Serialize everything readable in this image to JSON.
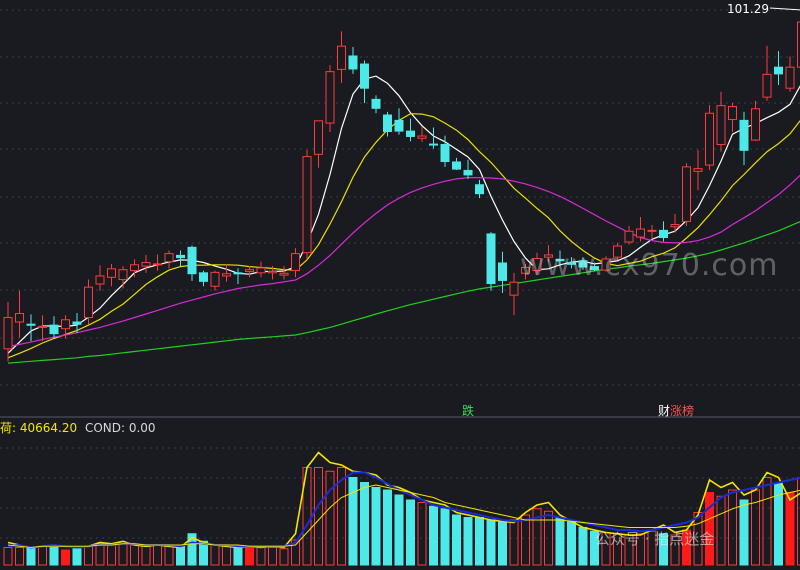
{
  "price_label": "101.29",
  "watermark": "www.cx970.com",
  "social_label": "公众号 · 指点迷金",
  "sub_header": {
    "value_text": "荷: 40664.20",
    "cond_text": "COND: 0.00"
  },
  "markers": {
    "down": "跌",
    "news_prefix": "财",
    "news_up": "涨榜"
  },
  "colors": {
    "background": "#1a1b20",
    "up": "#ff3b3b",
    "down": "#4de8e8",
    "ma5": "#ffffff",
    "ma10": "#e8e000",
    "ma20": "#d82ad8",
    "ma60": "#1fd11f",
    "vol_line": "#f2e600",
    "vol_ma": "#1a2bd8",
    "vol_red_fill": "#ff1a1a",
    "grid": "#3a3d4a"
  },
  "chart_data": [
    {
      "type": "candlestick",
      "title": "",
      "ylim": [
        23,
        101.29
      ],
      "grid": true,
      "candles": [
        {
          "o": 25.5,
          "h": 36,
          "l": 22.7,
          "c": 32.5
        },
        {
          "o": 31.5,
          "h": 38.5,
          "l": 28,
          "c": 33.4
        },
        {
          "o": 31.0,
          "h": 33.2,
          "l": 27.2,
          "c": 30.8
        },
        {
          "o": 30.5,
          "h": 33,
          "l": 27.2,
          "c": 30.5
        },
        {
          "o": 30.8,
          "h": 32.8,
          "l": 27.8,
          "c": 28.9
        },
        {
          "o": 30,
          "h": 33,
          "l": 27.8,
          "c": 32
        },
        {
          "o": 31.5,
          "h": 33.5,
          "l": 29,
          "c": 31
        },
        {
          "o": 32.5,
          "h": 41,
          "l": 31,
          "c": 39.3
        },
        {
          "o": 40,
          "h": 44.2,
          "l": 38.5,
          "c": 41.8
        },
        {
          "o": 41.5,
          "h": 44.5,
          "l": 39.5,
          "c": 43.4
        },
        {
          "o": 41,
          "h": 44,
          "l": 39,
          "c": 43.2
        },
        {
          "o": 43,
          "h": 45.5,
          "l": 41.5,
          "c": 44.3
        },
        {
          "o": 44,
          "h": 46.5,
          "l": 42.5,
          "c": 44.8
        },
        {
          "o": 44.5,
          "h": 46.6,
          "l": 43,
          "c": 44.5
        },
        {
          "o": 45,
          "h": 47.5,
          "l": 43.5,
          "c": 46.8
        },
        {
          "o": 46.4,
          "h": 47.5,
          "l": 44,
          "c": 45.9
        },
        {
          "o": 48.2,
          "h": 48.6,
          "l": 40.7,
          "c": 42.3
        },
        {
          "o": 42.5,
          "h": 43,
          "l": 39.5,
          "c": 40.6
        },
        {
          "o": 39.5,
          "h": 43,
          "l": 38.5,
          "c": 42.6
        },
        {
          "o": 41.8,
          "h": 44.5,
          "l": 40.5,
          "c": 42.3
        },
        {
          "o": 42.5,
          "h": 43.5,
          "l": 40,
          "c": 42.3
        },
        {
          "o": 42.8,
          "h": 44,
          "l": 41.5,
          "c": 43.2
        },
        {
          "o": 42.5,
          "h": 45,
          "l": 41.5,
          "c": 43.6
        },
        {
          "o": 42.5,
          "h": 44,
          "l": 41,
          "c": 42.8
        },
        {
          "o": 42,
          "h": 44,
          "l": 41,
          "c": 42.4
        },
        {
          "o": 43,
          "h": 48,
          "l": 41.5,
          "c": 46.8
        },
        {
          "o": 47,
          "h": 70,
          "l": 45.5,
          "c": 68.5
        },
        {
          "o": 69,
          "h": 76.5,
          "l": 66,
          "c": 76.5
        },
        {
          "o": 76,
          "h": 89,
          "l": 74,
          "c": 87.5
        },
        {
          "o": 88,
          "h": 96.5,
          "l": 85,
          "c": 93.2
        },
        {
          "o": 91,
          "h": 93,
          "l": 87,
          "c": 88.1
        },
        {
          "o": 89.2,
          "h": 90,
          "l": 80.5,
          "c": 83.8
        },
        {
          "o": 81.3,
          "h": 82.2,
          "l": 78.2,
          "c": 79.3
        },
        {
          "o": 77.8,
          "h": 78.5,
          "l": 73,
          "c": 74.1
        },
        {
          "o": 76.6,
          "h": 79.3,
          "l": 73.4,
          "c": 74.2
        },
        {
          "o": 74.2,
          "h": 77,
          "l": 71.9,
          "c": 73
        },
        {
          "o": 72.6,
          "h": 75.2,
          "l": 71.8,
          "c": 73.1
        },
        {
          "o": 71.3,
          "h": 75,
          "l": 70.3,
          "c": 71.1
        },
        {
          "o": 71.2,
          "h": 73.2,
          "l": 66.2,
          "c": 67.4
        },
        {
          "o": 67.3,
          "h": 68.2,
          "l": 65.5,
          "c": 65.7
        },
        {
          "o": 65.4,
          "h": 67.8,
          "l": 63.5,
          "c": 64.4
        },
        {
          "o": 62.2,
          "h": 63.3,
          "l": 59.2,
          "c": 60.2
        },
        {
          "o": 51.2,
          "h": 51.6,
          "l": 38.5,
          "c": 40.1
        },
        {
          "o": 44.7,
          "h": 47.2,
          "l": 38,
          "c": 40.8
        },
        {
          "o": 37.5,
          "h": 42.5,
          "l": 33,
          "c": 40.4
        },
        {
          "o": 42.4,
          "h": 44.5,
          "l": 41,
          "c": 43.7
        },
        {
          "o": 43,
          "h": 47,
          "l": 42,
          "c": 45.7
        },
        {
          "o": 46,
          "h": 48.7,
          "l": 44.9,
          "c": 46.5
        },
        {
          "o": 45.5,
          "h": 47.5,
          "l": 44,
          "c": 45.2
        },
        {
          "o": 44.8,
          "h": 46,
          "l": 43.5,
          "c": 44.4
        },
        {
          "o": 45.2,
          "h": 46,
          "l": 43.2,
          "c": 43.8
        },
        {
          "o": 43.9,
          "h": 44.8,
          "l": 42.9,
          "c": 43.2
        },
        {
          "o": 43.1,
          "h": 46.2,
          "l": 42.8,
          "c": 45.6
        },
        {
          "o": 46,
          "h": 49.2,
          "l": 45.5,
          "c": 48.5
        },
        {
          "o": 49.4,
          "h": 53,
          "l": 48.8,
          "c": 51.8
        },
        {
          "o": 50.5,
          "h": 55,
          "l": 49.5,
          "c": 52.3
        },
        {
          "o": 51.8,
          "h": 53.2,
          "l": 50,
          "c": 52
        },
        {
          "o": 52,
          "h": 54,
          "l": 49.5,
          "c": 50.4
        },
        {
          "o": 52.8,
          "h": 55.7,
          "l": 51.5,
          "c": 53.3
        },
        {
          "o": 54,
          "h": 67,
          "l": 53,
          "c": 66.2
        },
        {
          "o": 65.2,
          "h": 70,
          "l": 61,
          "c": 65.8
        },
        {
          "o": 66.6,
          "h": 80,
          "l": 65.5,
          "c": 78.2
        },
        {
          "o": 71.2,
          "h": 83,
          "l": 69.6,
          "c": 79.9
        },
        {
          "o": 76.8,
          "h": 80.5,
          "l": 74,
          "c": 79.7
        },
        {
          "o": 76.6,
          "h": 78.5,
          "l": 66.6,
          "c": 69.9
        },
        {
          "o": 72.2,
          "h": 81,
          "l": 72,
          "c": 79.2
        },
        {
          "o": 81.8,
          "h": 93.3,
          "l": 81,
          "c": 86.9
        },
        {
          "o": 88.5,
          "h": 92.1,
          "l": 84.5,
          "c": 87
        },
        {
          "o": 83.8,
          "h": 90.9,
          "l": 83,
          "c": 88.5
        },
        {
          "o": 88.5,
          "h": 101.29,
          "l": 84.5,
          "c": 98.6
        }
      ],
      "moving_averages": [
        {
          "period": 5,
          "values": [
            24.5,
            27,
            29.5,
            30.6,
            30.6,
            30.5,
            30.8,
            32.6,
            34.6,
            37.4,
            39.9,
            42.5,
            43.6,
            44.3,
            44.9,
            45.4,
            45.3,
            44.8,
            44,
            43.3,
            42.4,
            42.2,
            42.8,
            42.8,
            42.9,
            43.8,
            49.1,
            55.6,
            64.5,
            74.8,
            82.5,
            85.8,
            86.5,
            84.9,
            82.1,
            78.3,
            75.4,
            73.1,
            71.8,
            70.1,
            68.4,
            65.6,
            59.6,
            54.3,
            49.5,
            45.8,
            43.2,
            43.4,
            44.3,
            44.9,
            45.1,
            44.5,
            44.8,
            45.2,
            46.3,
            48.2,
            50,
            51,
            51.8,
            54.2,
            57.1,
            62,
            67.5,
            73.5,
            74.8,
            75.9,
            77.2,
            78.4,
            80.2,
            84.8
          ]
        },
        {
          "period": 10,
          "values": [
            23.5,
            24.5,
            25.6,
            26.8,
            27.8,
            28.7,
            29.6,
            30.8,
            32.1,
            33.9,
            35.5,
            37.7,
            39.9,
            41.6,
            43.1,
            43.9,
            44.2,
            44.2,
            44.3,
            44.3,
            44.2,
            43.9,
            43.7,
            43.5,
            43.2,
            43.1,
            45.4,
            48.8,
            53.4,
            58.4,
            63.9,
            68.4,
            71.7,
            74.5,
            76.6,
            78.1,
            78,
            77.4,
            76,
            74.4,
            72.3,
            69.6,
            67.2,
            64.3,
            61.4,
            59.2,
            56.9,
            54.8,
            51.9,
            49.5,
            47.5,
            45.8,
            44.6,
            44.1,
            44.6,
            45.1,
            46.1,
            46.9,
            48.1,
            50.3,
            52.6,
            55.5,
            58.6,
            62,
            64.5,
            67.1,
            69.6,
            71.4,
            73.6,
            76.9
          ]
        },
        {
          "period": 20,
          "values": [
            26,
            26.5,
            27,
            27.6,
            28.1,
            28.6,
            29.1,
            29.7,
            30.3,
            31,
            31.7,
            32.5,
            33.3,
            34.1,
            34.9,
            35.7,
            36.4,
            37.1,
            37.8,
            38.4,
            39,
            39.4,
            39.8,
            40.1,
            40.5,
            40.9,
            42.3,
            44.2,
            46.4,
            48.9,
            51.4,
            53.7,
            55.8,
            57.7,
            59.2,
            60.5,
            61.5,
            62.3,
            63,
            63.5,
            63.8,
            63.8,
            63.7,
            63.5,
            63,
            62.4,
            61.6,
            60.7,
            59.6,
            58.3,
            56.9,
            55.5,
            54.1,
            52.8,
            51.5,
            50.4,
            49.7,
            49.3,
            49.2,
            49.3,
            49.7,
            50.5,
            51.6,
            53.3,
            54.8,
            56.4,
            58.2,
            60,
            62.2,
            64.6
          ]
        },
        {
          "period": 60,
          "values": [
            22.3,
            22.5,
            22.7,
            22.9,
            23.1,
            23.3,
            23.5,
            23.8,
            24,
            24.3,
            24.6,
            24.9,
            25.2,
            25.5,
            25.8,
            26.1,
            26.4,
            26.7,
            27,
            27.3,
            27.6,
            27.8,
            28,
            28.2,
            28.4,
            28.6,
            29.1,
            29.7,
            30.3,
            31,
            31.8,
            32.5,
            33.3,
            34,
            34.7,
            35.4,
            36,
            36.6,
            37.2,
            37.8,
            38.4,
            38.9,
            39.3,
            39.7,
            40.1,
            40.5,
            40.9,
            41.3,
            41.7,
            42.1,
            42.5,
            42.9,
            43.3,
            43.6,
            44,
            44.3,
            44.6,
            45,
            45.4,
            45.8,
            46.3,
            46.9,
            47.6,
            48.4,
            49.2,
            50.1,
            51,
            51.9,
            53,
            54.1
          ]
        }
      ]
    },
    {
      "type": "bar",
      "title": "",
      "ylim": [
        0,
        100
      ],
      "series": [
        {
          "values": [
            18,
            16,
            14,
            15,
            16,
            15,
            14,
            15,
            18,
            17,
            19,
            16,
            15,
            16,
            15,
            14,
            22,
            18,
            16,
            15,
            14,
            15,
            14,
            15,
            14,
            25,
            78,
            90,
            82,
            80,
            75,
            74,
            72,
            64,
            62,
            58,
            52,
            50,
            48,
            42,
            40,
            38,
            36,
            35,
            34,
            42,
            48,
            50,
            40,
            35,
            30,
            28,
            26,
            25,
            24,
            24,
            28,
            32,
            26,
            28,
            40,
            68,
            62,
            66,
            56,
            60,
            74,
            70,
            52,
            58
          ]
        },
        {
          "values": [
            15,
            16,
            14,
            15,
            16,
            15,
            14,
            15,
            16,
            16,
            17,
            17,
            16,
            16,
            16,
            15,
            18,
            17,
            16,
            16,
            15,
            15,
            15,
            15,
            15,
            18,
            32,
            48,
            60,
            68,
            74,
            74,
            70,
            65,
            60,
            56,
            52,
            48,
            46,
            44,
            42,
            40,
            38,
            36,
            35,
            36,
            38,
            40,
            38,
            36,
            34,
            32,
            30,
            28,
            28,
            27,
            28,
            30,
            32,
            34,
            38,
            46,
            54,
            58,
            60,
            62,
            64,
            66,
            68,
            70
          ]
        },
        {
          "values": [
            16,
            15,
            14,
            15,
            15,
            15,
            15,
            15,
            16,
            16,
            17,
            17,
            16,
            16,
            16,
            16,
            17,
            17,
            16,
            16,
            16,
            15,
            15,
            15,
            15,
            16,
            26,
            36,
            46,
            54,
            58,
            62,
            64,
            62,
            60,
            58,
            56,
            54,
            50,
            48,
            46,
            44,
            42,
            40,
            38,
            36,
            36,
            36,
            36,
            35,
            34,
            33,
            32,
            31,
            30,
            30,
            30,
            30,
            30,
            31,
            33,
            37,
            41,
            45,
            48,
            50,
            53,
            56,
            58,
            60
          ]
        }
      ],
      "volume_ratios": [
        0.14,
        0.14,
        0.14,
        0.15,
        0.14,
        0.12,
        0.13,
        0.15,
        0.17,
        0.16,
        0.17,
        0.16,
        0.15,
        0.16,
        0.15,
        0.15,
        0.25,
        0.19,
        0.16,
        0.15,
        0.14,
        0.15,
        0.14,
        0.14,
        0.13,
        0.2,
        0.78,
        0.78,
        0.75,
        0.78,
        0.7,
        0.66,
        0.62,
        0.6,
        0.56,
        0.52,
        0.5,
        0.47,
        0.45,
        0.4,
        0.38,
        0.38,
        0.36,
        0.35,
        0.36,
        0.4,
        0.45,
        0.43,
        0.38,
        0.35,
        0.3,
        0.27,
        0.26,
        0.25,
        0.24,
        0.25,
        0.27,
        0.25,
        0.24,
        0.28,
        0.42,
        0.58,
        0.55,
        0.6,
        0.52,
        0.6,
        0.7,
        0.65,
        0.58,
        0.7
      ],
      "red_fill_bars": [
        5,
        21,
        59,
        61,
        68
      ]
    }
  ]
}
